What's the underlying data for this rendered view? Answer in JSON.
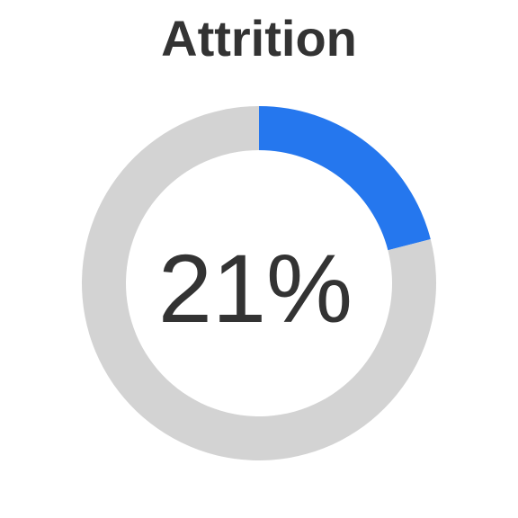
{
  "chart_data": {
    "type": "pie",
    "title": "Attrition",
    "value_percent": 21,
    "center_label": "21%",
    "slices": [
      {
        "value": 21,
        "color": "#2577EE"
      },
      {
        "value": 79,
        "color": "#D3D3D3"
      }
    ]
  }
}
